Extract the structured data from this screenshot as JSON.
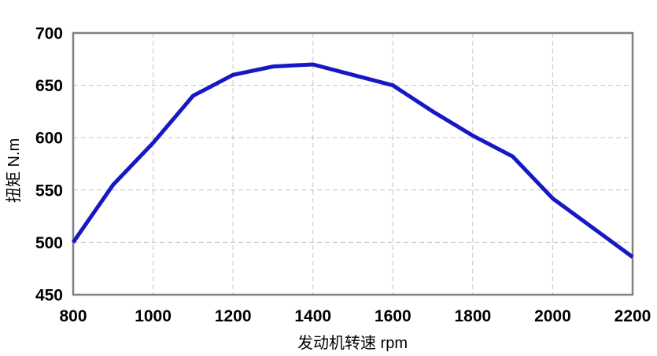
{
  "chart_data": {
    "type": "line",
    "title": "",
    "xlabel": "发动机转速  rpm",
    "ylabel": "扭矩 N.m",
    "x": [
      800,
      900,
      1000,
      1100,
      1200,
      1300,
      1400,
      1500,
      1600,
      1700,
      1800,
      1900,
      2000,
      2100,
      2200
    ],
    "series": [
      {
        "name": "扭矩",
        "values": [
          500,
          555,
          595,
          640,
          660,
          668,
          670,
          660,
          650,
          625,
          602,
          582,
          542,
          514,
          486
        ]
      }
    ],
    "xlim": [
      800,
      2200
    ],
    "ylim": [
      450,
      700
    ],
    "x_ticks": [
      800,
      1000,
      1200,
      1400,
      1600,
      1800,
      2000,
      2200
    ],
    "y_ticks": [
      450,
      500,
      550,
      600,
      650,
      700
    ],
    "grid": "dashed",
    "legend_position": "none",
    "colors": {
      "line": "#1717c4",
      "grid": "#c4c4c4",
      "frame": "#808080",
      "text": "#000000",
      "background": "#ffffff"
    }
  }
}
